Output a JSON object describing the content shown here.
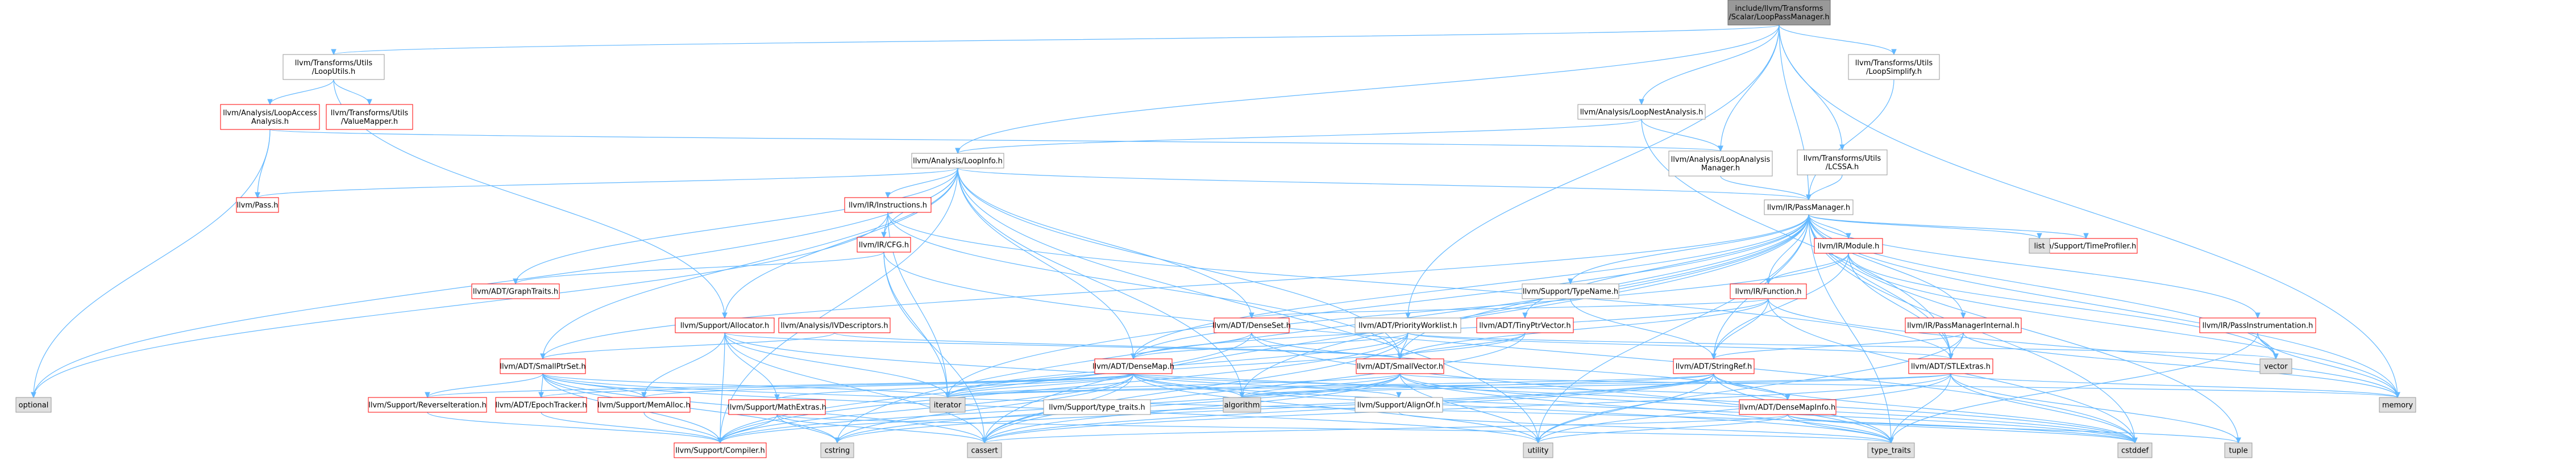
{
  "title": "",
  "nodes": [
    {
      "id": "root",
      "lines": [
        "include/llvm/Transforms",
        "/Scalar/LoopPassManager.h"
      ],
      "style": "root"
    },
    {
      "id": "looputils",
      "lines": [
        "llvm/Transforms/Utils",
        "/LoopUtils.h"
      ],
      "style": "plain"
    },
    {
      "id": "loopaccess",
      "lines": [
        "llvm/Analysis/LoopAccess",
        "Analysis.h"
      ],
      "style": "red"
    },
    {
      "id": "valuemapper",
      "lines": [
        "llvm/Transforms/Utils",
        "/ValueMapper.h"
      ],
      "style": "red"
    },
    {
      "id": "pass",
      "lines": [
        "llvm/Pass.h"
      ],
      "style": "red"
    },
    {
      "id": "loopinfo",
      "lines": [
        "llvm/Analysis/LoopInfo.h"
      ],
      "style": "plain"
    },
    {
      "id": "loopnest",
      "lines": [
        "llvm/Analysis/LoopNestAnalysis.h"
      ],
      "style": "plain"
    },
    {
      "id": "loopanalysismgr",
      "lines": [
        "llvm/Analysis/LoopAnalysis",
        "Manager.h"
      ],
      "style": "plain"
    },
    {
      "id": "loopsimplify",
      "lines": [
        "llvm/Transforms/Utils",
        "/LoopSimplify.h"
      ],
      "style": "plain"
    },
    {
      "id": "lcssa",
      "lines": [
        "llvm/Transforms/Utils",
        "/LCSSA.h"
      ],
      "style": "plain"
    },
    {
      "id": "passmanager",
      "lines": [
        "llvm/IR/PassManager.h"
      ],
      "style": "plain"
    },
    {
      "id": "instructions",
      "lines": [
        "llvm/IR/Instructions.h"
      ],
      "style": "red"
    },
    {
      "id": "cfg",
      "lines": [
        "llvm/IR/CFG.h"
      ],
      "style": "red"
    },
    {
      "id": "graphtraits",
      "lines": [
        "llvm/ADT/GraphTraits.h"
      ],
      "style": "red"
    },
    {
      "id": "module",
      "lines": [
        "llvm/IR/Module.h"
      ],
      "style": "red"
    },
    {
      "id": "timeprofiler",
      "lines": [
        "llvm/Support/TimeProfiler.h"
      ],
      "style": "red"
    },
    {
      "id": "list",
      "lines": [
        "list"
      ],
      "style": "gray"
    },
    {
      "id": "typename",
      "lines": [
        "llvm/Support/TypeName.h"
      ],
      "style": "plain"
    },
    {
      "id": "function",
      "lines": [
        "llvm/IR/Function.h"
      ],
      "style": "red"
    },
    {
      "id": "allocator",
      "lines": [
        "llvm/Support/Allocator.h"
      ],
      "style": "red"
    },
    {
      "id": "ivdescriptors",
      "lines": [
        "llvm/Analysis/IVDescriptors.h"
      ],
      "style": "red"
    },
    {
      "id": "denseset",
      "lines": [
        "llvm/ADT/DenseSet.h"
      ],
      "style": "red"
    },
    {
      "id": "priorityworklist",
      "lines": [
        "llvm/ADT/PriorityWorklist.h"
      ],
      "style": "plain"
    },
    {
      "id": "tinyptrvector",
      "lines": [
        "llvm/ADT/TinyPtrVector.h"
      ],
      "style": "red"
    },
    {
      "id": "passmanagerinternal",
      "lines": [
        "llvm/IR/PassManagerInternal.h"
      ],
      "style": "red"
    },
    {
      "id": "passinstrumentation",
      "lines": [
        "llvm/IR/PassInstrumentation.h"
      ],
      "style": "red"
    },
    {
      "id": "smallptrset",
      "lines": [
        "llvm/ADT/SmallPtrSet.h"
      ],
      "style": "red"
    },
    {
      "id": "densemap",
      "lines": [
        "llvm/ADT/DenseMap.h"
      ],
      "style": "red"
    },
    {
      "id": "smallvector",
      "lines": [
        "llvm/ADT/SmallVector.h"
      ],
      "style": "red"
    },
    {
      "id": "stringref",
      "lines": [
        "llvm/ADT/StringRef.h"
      ],
      "style": "red"
    },
    {
      "id": "stlextras",
      "lines": [
        "llvm/ADT/STLExtras.h"
      ],
      "style": "red"
    },
    {
      "id": "vector",
      "lines": [
        "vector"
      ],
      "style": "gray"
    },
    {
      "id": "optional",
      "lines": [
        "optional"
      ],
      "style": "gray"
    },
    {
      "id": "reverseiteration",
      "lines": [
        "llvm/Support/ReverseIteration.h"
      ],
      "style": "red"
    },
    {
      "id": "epochtracker",
      "lines": [
        "llvm/ADT/EpochTracker.h"
      ],
      "style": "red"
    },
    {
      "id": "memalloc",
      "lines": [
        "llvm/Support/MemAlloc.h"
      ],
      "style": "red"
    },
    {
      "id": "mathextras",
      "lines": [
        "llvm/Support/MathExtras.h"
      ],
      "style": "red"
    },
    {
      "id": "iterator",
      "lines": [
        "iterator"
      ],
      "style": "gray"
    },
    {
      "id": "typetraits_llvm",
      "lines": [
        "llvm/Support/type_traits.h"
      ],
      "style": "plain"
    },
    {
      "id": "algorithm",
      "lines": [
        "algorithm"
      ],
      "style": "gray"
    },
    {
      "id": "alignof",
      "lines": [
        "llvm/Support/AlignOf.h"
      ],
      "style": "plain"
    },
    {
      "id": "densemapinfo",
      "lines": [
        "llvm/ADT/DenseMapInfo.h"
      ],
      "style": "red"
    },
    {
      "id": "memory",
      "lines": [
        "memory"
      ],
      "style": "gray"
    },
    {
      "id": "compiler",
      "lines": [
        "llvm/Support/Compiler.h"
      ],
      "style": "red"
    },
    {
      "id": "cstring",
      "lines": [
        "cstring"
      ],
      "style": "gray"
    },
    {
      "id": "cassert",
      "lines": [
        "cassert"
      ],
      "style": "gray"
    },
    {
      "id": "utility",
      "lines": [
        "utility"
      ],
      "style": "gray"
    },
    {
      "id": "type_traits",
      "lines": [
        "type_traits"
      ],
      "style": "gray"
    },
    {
      "id": "cstddef",
      "lines": [
        "cstddef"
      ],
      "style": "gray"
    },
    {
      "id": "tuple",
      "lines": [
        "tuple"
      ],
      "style": "gray"
    }
  ],
  "edges": [
    [
      "root",
      "looputils"
    ],
    [
      "root",
      "loopinfo"
    ],
    [
      "root",
      "loopnest"
    ],
    [
      "root",
      "loopanalysismgr"
    ],
    [
      "root",
      "loopsimplify"
    ],
    [
      "root",
      "lcssa"
    ],
    [
      "root",
      "passmanager"
    ],
    [
      "root",
      "priorityworklist"
    ],
    [
      "root",
      "memory"
    ],
    [
      "looputils",
      "loopaccess"
    ],
    [
      "looputils",
      "valuemapper"
    ],
    [
      "looputils",
      "allocator"
    ],
    [
      "loopaccess",
      "pass"
    ],
    [
      "loopaccess",
      "optional"
    ],
    [
      "loopaccess",
      "loopanalysismgr"
    ],
    [
      "loopinfo",
      "pass"
    ],
    [
      "loopinfo",
      "instructions"
    ],
    [
      "loopinfo",
      "cfg"
    ],
    [
      "loopinfo",
      "graphtraits"
    ],
    [
      "loopinfo",
      "passmanager"
    ],
    [
      "loopinfo",
      "smallptrset"
    ],
    [
      "loopinfo",
      "densemap"
    ],
    [
      "loopinfo",
      "denseset"
    ],
    [
      "loopinfo",
      "smallvector"
    ],
    [
      "loopinfo",
      "allocator"
    ],
    [
      "loopinfo",
      "optional"
    ],
    [
      "loopinfo",
      "algorithm"
    ],
    [
      "loopinfo",
      "utility"
    ],
    [
      "loopinfo",
      "compiler"
    ],
    [
      "loopnest",
      "loopinfo"
    ],
    [
      "loopnest",
      "loopanalysismgr"
    ],
    [
      "loopnest",
      "stlextras"
    ],
    [
      "loopanalysismgr",
      "passmanager"
    ],
    [
      "loopsimplify",
      "passmanager"
    ],
    [
      "lcssa",
      "passmanager"
    ],
    [
      "instructions",
      "cfg"
    ],
    [
      "instructions",
      "smallvector"
    ],
    [
      "instructions",
      "iterator"
    ],
    [
      "instructions",
      "stlextras"
    ],
    [
      "instructions",
      "optional"
    ],
    [
      "cfg",
      "graphtraits"
    ],
    [
      "cfg",
      "iterator"
    ],
    [
      "cfg",
      "cassert"
    ],
    [
      "cfg",
      "cstddef"
    ],
    [
      "passmanager",
      "module"
    ],
    [
      "passmanager",
      "function"
    ],
    [
      "passmanager",
      "typename"
    ],
    [
      "passmanager",
      "timeprofiler"
    ],
    [
      "passmanager",
      "list"
    ],
    [
      "passmanager",
      "passmanagerinternal"
    ],
    [
      "passmanager",
      "passinstrumentation"
    ],
    [
      "passmanager",
      "tinyptrvector"
    ],
    [
      "passmanager",
      "densemap"
    ],
    [
      "passmanager",
      "stlextras"
    ],
    [
      "passmanager",
      "smallptrset"
    ],
    [
      "passmanager",
      "smallvector"
    ],
    [
      "passmanager",
      "stringref"
    ],
    [
      "passmanager",
      "vector"
    ],
    [
      "passmanager",
      "memory"
    ],
    [
      "passmanager",
      "cstring"
    ],
    [
      "passmanager",
      "iterator"
    ],
    [
      "passmanager",
      "type_traits"
    ],
    [
      "passmanager",
      "utility"
    ],
    [
      "passmanager",
      "tuple"
    ],
    [
      "passmanager",
      "cassert"
    ],
    [
      "passmanager",
      "algorithm"
    ],
    [
      "passmanager",
      "cstddef"
    ],
    [
      "module",
      "function"
    ],
    [
      "module",
      "stringref"
    ],
    [
      "module",
      "densemap"
    ],
    [
      "module",
      "stlextras"
    ],
    [
      "module",
      "vector"
    ],
    [
      "module",
      "memory"
    ],
    [
      "function",
      "densemap"
    ],
    [
      "function",
      "smallvector"
    ],
    [
      "function",
      "stringref"
    ],
    [
      "function",
      "cstddef"
    ],
    [
      "function",
      "memory"
    ],
    [
      "function",
      "denseset"
    ],
    [
      "typename",
      "stringref"
    ],
    [
      "allocator",
      "compiler"
    ],
    [
      "allocator",
      "mathextras"
    ],
    [
      "allocator",
      "memalloc"
    ],
    [
      "allocator",
      "smallvector"
    ],
    [
      "allocator",
      "cassert"
    ],
    [
      "allocator",
      "cstddef"
    ],
    [
      "allocator",
      "iterator"
    ],
    [
      "ivdescriptors",
      "smallptrset"
    ],
    [
      "ivdescriptors",
      "smallvector"
    ],
    [
      "denseset",
      "densemap"
    ],
    [
      "denseset",
      "densemapinfo"
    ],
    [
      "denseset",
      "compiler"
    ],
    [
      "denseset",
      "type_traits"
    ],
    [
      "priorityworklist",
      "densemap"
    ],
    [
      "priorityworklist",
      "stlextras"
    ],
    [
      "priorityworklist",
      "smallvector"
    ],
    [
      "priorityworklist",
      "compiler"
    ],
    [
      "priorityworklist",
      "iterator"
    ],
    [
      "priorityworklist",
      "cassert"
    ],
    [
      "priorityworklist",
      "vector"
    ],
    [
      "tinyptrvector",
      "smallvector"
    ],
    [
      "tinyptrvector",
      "cassert"
    ],
    [
      "tinyptrvector",
      "iterator"
    ],
    [
      "passmanagerinternal",
      "stringref"
    ],
    [
      "passmanagerinternal",
      "stlextras"
    ],
    [
      "passmanagerinternal",
      "memory"
    ],
    [
      "passmanagerinternal",
      "utility"
    ],
    [
      "passinstrumentation",
      "vector"
    ],
    [
      "passinstrumentation",
      "memory"
    ],
    [
      "passinstrumentation",
      "type_traits"
    ],
    [
      "smallptrset",
      "reverseiteration"
    ],
    [
      "smallptrset",
      "epochtracker"
    ],
    [
      "smallptrset",
      "memalloc"
    ],
    [
      "smallptrset",
      "compiler"
    ],
    [
      "smallptrset",
      "type_traits_llvm"
    ],
    [
      "smallptrset",
      "iterator"
    ],
    [
      "smallptrset",
      "cassert"
    ],
    [
      "smallptrset",
      "cstddef"
    ],
    [
      "smallptrset",
      "utility"
    ],
    [
      "smallptrset",
      "cstring"
    ],
    [
      "densemap",
      "epochtracker"
    ],
    [
      "densemap",
      "mathextras"
    ],
    [
      "densemap",
      "memalloc"
    ],
    [
      "densemap",
      "reverseiteration"
    ],
    [
      "densemap",
      "type_traits_llvm"
    ],
    [
      "densemap",
      "alignof"
    ],
    [
      "densemap",
      "densemapinfo"
    ],
    [
      "densemap",
      "compiler"
    ],
    [
      "densemap",
      "algorithm"
    ],
    [
      "densemap",
      "cassert"
    ],
    [
      "densemap",
      "iterator"
    ],
    [
      "densemap",
      "cstddef"
    ],
    [
      "densemap",
      "utility"
    ],
    [
      "densemap",
      "type_traits"
    ],
    [
      "densemap",
      "cstring"
    ],
    [
      "smallvector",
      "compiler"
    ],
    [
      "smallvector",
      "type_traits_llvm"
    ],
    [
      "smallvector",
      "algorithm"
    ],
    [
      "smallvector",
      "cassert"
    ],
    [
      "smallvector",
      "cstddef"
    ],
    [
      "smallvector",
      "cstring"
    ],
    [
      "smallvector",
      "iterator"
    ],
    [
      "smallvector",
      "memory"
    ],
    [
      "smallvector",
      "utility"
    ],
    [
      "smallvector",
      "type_traits"
    ],
    [
      "stringref",
      "densemapinfo"
    ],
    [
      "stringref",
      "iterator"
    ],
    [
      "stringref",
      "compiler"
    ],
    [
      "stringref",
      "algorithm"
    ],
    [
      "stringref",
      "cassert"
    ],
    [
      "stringref",
      "cstddef"
    ],
    [
      "stringref",
      "cstring"
    ],
    [
      "stringref",
      "type_traits"
    ],
    [
      "stringref",
      "utility"
    ],
    [
      "stlextras",
      "iterator"
    ],
    [
      "stlextras",
      "type_traits_llvm"
    ],
    [
      "stlextras",
      "algorithm"
    ],
    [
      "stlextras",
      "cassert"
    ],
    [
      "stlextras",
      "cstddef"
    ],
    [
      "stlextras",
      "memory"
    ],
    [
      "stlextras",
      "tuple"
    ],
    [
      "stlextras",
      "type_traits"
    ],
    [
      "stlextras",
      "utility"
    ],
    [
      "mathextras",
      "compiler"
    ],
    [
      "mathextras",
      "cassert"
    ],
    [
      "mathextras",
      "cstring"
    ],
    [
      "mathextras",
      "type_traits"
    ],
    [
      "memalloc",
      "compiler"
    ],
    [
      "reverseiteration",
      "compiler"
    ],
    [
      "epochtracker",
      "compiler"
    ],
    [
      "type_traits_llvm",
      "utility"
    ],
    [
      "type_traits_llvm",
      "type_traits"
    ],
    [
      "alignof",
      "type_traits"
    ],
    [
      "densemapinfo",
      "cassert"
    ],
    [
      "densemapinfo",
      "cstddef"
    ],
    [
      "densemapinfo",
      "utility"
    ],
    [
      "densemapinfo",
      "tuple"
    ],
    [
      "densemapinfo",
      "type_traits"
    ]
  ]
}
